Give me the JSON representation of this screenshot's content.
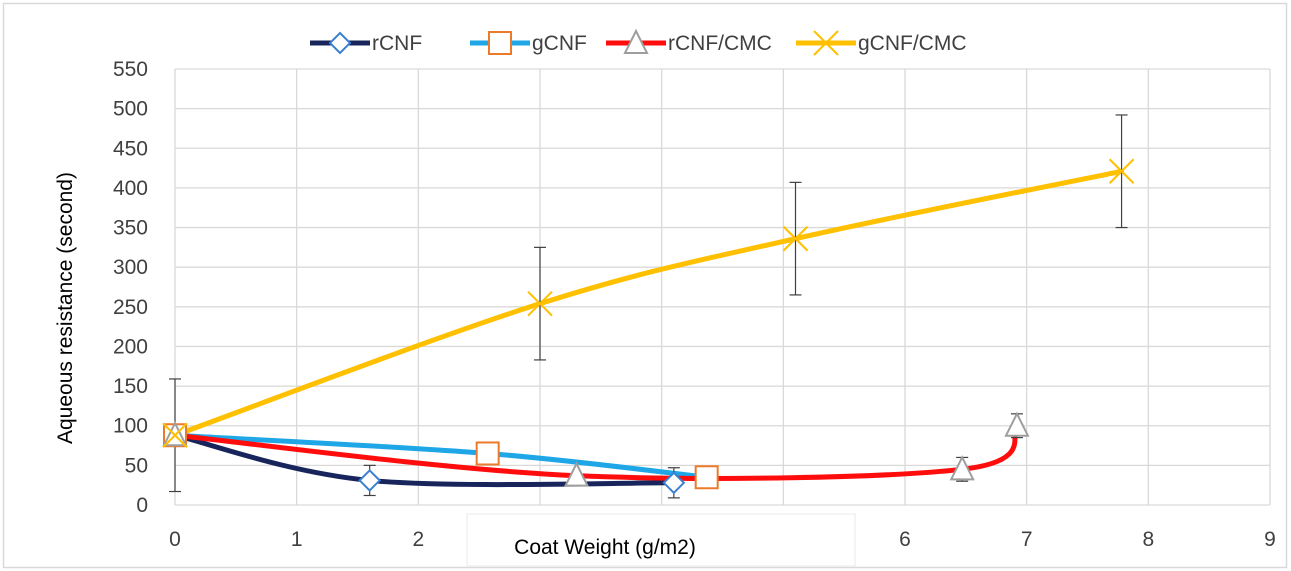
{
  "chart_data": {
    "type": "line",
    "title": "",
    "xlabel": "Coat Weight (g/m2)",
    "ylabel": "Aqueous resistance (second)",
    "xlim": [
      0,
      9
    ],
    "ylim": [
      0,
      550
    ],
    "xticks": [
      "0",
      "1",
      "2",
      "3",
      "4",
      "5",
      "6",
      "7",
      "8",
      "9"
    ],
    "yticks": [
      "0",
      "50",
      "100",
      "150",
      "200",
      "250",
      "300",
      "350",
      "400",
      "450",
      "500",
      "550"
    ],
    "grid": true,
    "legend_position": "top",
    "series": [
      {
        "name": "rCNF",
        "color": "#17255c",
        "marker": "diamond",
        "marker_color": "#3b7fd0",
        "x": [
          0,
          1.6,
          4.1
        ],
        "y": [
          88,
          31,
          28
        ],
        "err": [
          null,
          19,
          19
        ]
      },
      {
        "name": "gCNF",
        "color": "#1ea6e6",
        "marker": "square",
        "marker_color": "#ec7a2b",
        "x": [
          0,
          2.57,
          4.37
        ],
        "y": [
          88,
          65,
          35
        ],
        "err": [
          null,
          null,
          null
        ]
      },
      {
        "name": "rCNF/CMC",
        "color": "#ff0d0d",
        "marker": "triangle",
        "marker_color": "#9e9e9e",
        "x": [
          0,
          3.3,
          6.47,
          6.92
        ],
        "y": [
          88,
          37,
          45,
          100
        ],
        "err": [
          null,
          null,
          15,
          15
        ]
      },
      {
        "name": "gCNF/CMC",
        "color": "#ffc000",
        "marker": "x",
        "marker_color": "#ffc000",
        "x": [
          0,
          3.0,
          5.1,
          7.78
        ],
        "y": [
          88,
          254,
          336,
          421
        ],
        "err": [
          71,
          71,
          71,
          71
        ]
      }
    ]
  }
}
